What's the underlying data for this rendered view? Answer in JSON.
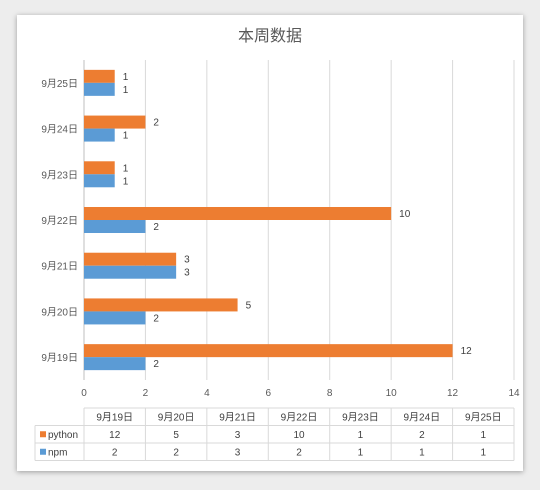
{
  "chart_data": {
    "type": "bar",
    "orientation": "horizontal",
    "title": "本周数据",
    "categories": [
      "9月19日",
      "9月20日",
      "9月21日",
      "9月22日",
      "9月23日",
      "9月24日",
      "9月25日"
    ],
    "series": [
      {
        "name": "python",
        "color": "#ed7d31",
        "values": [
          12,
          5,
          3,
          10,
          1,
          2,
          1
        ]
      },
      {
        "name": "npm",
        "color": "#5b9bd5",
        "values": [
          2,
          2,
          3,
          2,
          1,
          1,
          1
        ]
      }
    ],
    "xlim": [
      0,
      14
    ],
    "xticks": [
      0,
      2,
      4,
      6,
      8,
      10,
      12,
      14
    ],
    "grid": "vertical",
    "data_table": true
  }
}
